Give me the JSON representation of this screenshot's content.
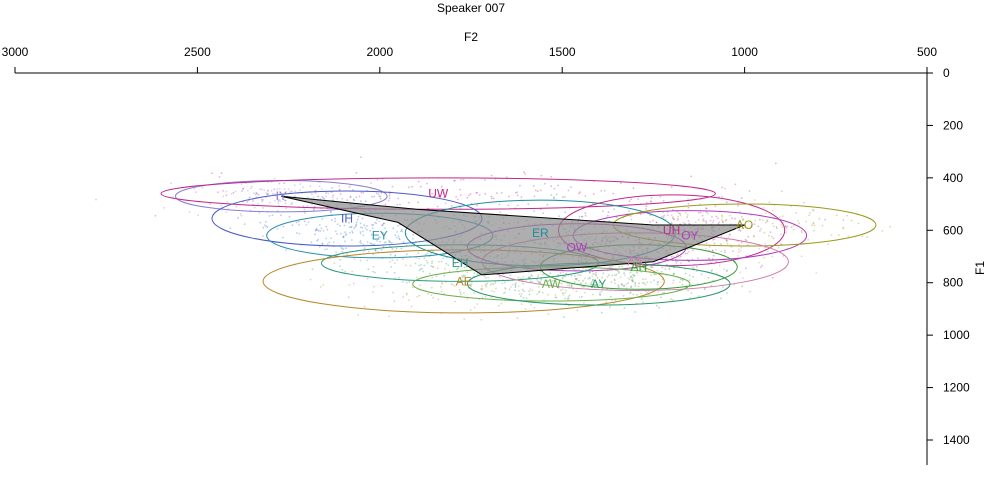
{
  "chart_data": {
    "type": "scatter",
    "title": "Speaker 007",
    "xlabel": "F2",
    "ylabel": "F1",
    "x_axis": {
      "position": "top",
      "reversed": true,
      "range": [
        3000,
        500
      ],
      "ticks": [
        "3000",
        "2500",
        "2000",
        "1500",
        "1000",
        "500"
      ]
    },
    "y_axis": {
      "position": "right",
      "reversed": true,
      "range": [
        0,
        1500
      ],
      "ticks": [
        "0",
        "200",
        "400",
        "600",
        "800",
        "1000",
        "1200",
        "1400"
      ]
    },
    "grid": false,
    "legend": "none",
    "vowels": [
      {
        "label": "IY",
        "f2": 2270,
        "f1": 470,
        "sd_f2": 290,
        "sd_f1": 60,
        "color": "#8a7fd6"
      },
      {
        "label": "UW",
        "f2": 1840,
        "f1": 460,
        "sd_f2": 760,
        "sd_f1": 60,
        "color": "#c0268b"
      },
      {
        "label": "IH",
        "f2": 2090,
        "f1": 555,
        "sd_f2": 370,
        "sd_f1": 105,
        "color": "#4a5bc8"
      },
      {
        "label": "EY",
        "f2": 2000,
        "f1": 620,
        "sd_f2": 310,
        "sd_f1": 85,
        "color": "#2e8fb0"
      },
      {
        "label": "ER",
        "f2": 1560,
        "f1": 610,
        "sd_f2": 370,
        "sd_f1": 125,
        "color": "#1a8fa0"
      },
      {
        "label": "OW",
        "f2": 1460,
        "f1": 665,
        "sd_f2": 300,
        "sd_f1": 90,
        "color": "#b03cc0"
      },
      {
        "label": "UH",
        "f2": 1200,
        "f1": 600,
        "sd_f2": 310,
        "sd_f1": 135,
        "color": "#c0268b"
      },
      {
        "label": "OY",
        "f2": 1150,
        "f1": 620,
        "sd_f2": 320,
        "sd_f1": 95,
        "color": "#b03cc0"
      },
      {
        "label": "AO",
        "f2": 1000,
        "f1": 580,
        "sd_f2": 360,
        "sd_f1": 80,
        "color": "#9a9a1a"
      },
      {
        "label": "EH",
        "f2": 1780,
        "f1": 725,
        "sd_f2": 380,
        "sd_f1": 70,
        "color": "#2e9a80"
      },
      {
        "label": "AE",
        "f2": 1770,
        "f1": 795,
        "sd_f2": 550,
        "sd_f1": 120,
        "color": "#b8862a"
      },
      {
        "label": "AA",
        "f2": 1300,
        "f1": 720,
        "sd_f2": 420,
        "sd_f1": 110,
        "color": "#d07aa8"
      },
      {
        "label": "AH",
        "f2": 1290,
        "f1": 740,
        "sd_f2": 270,
        "sd_f1": 85,
        "color": "#3a9a3a"
      },
      {
        "label": "AW",
        "f2": 1530,
        "f1": 805,
        "sd_f2": 380,
        "sd_f1": 65,
        "color": "#6ab04a"
      },
      {
        "label": "AY",
        "f2": 1400,
        "f1": 805,
        "sd_f2": 360,
        "sd_f1": 80,
        "color": "#2a9a6a"
      }
    ],
    "vowel_space_polygon": [
      [
        2270,
        470
      ],
      [
        1950,
        570
      ],
      [
        1720,
        770
      ],
      [
        1250,
        720
      ],
      [
        1000,
        580
      ],
      [
        1250,
        580
      ],
      [
        1900,
        520
      ]
    ]
  }
}
